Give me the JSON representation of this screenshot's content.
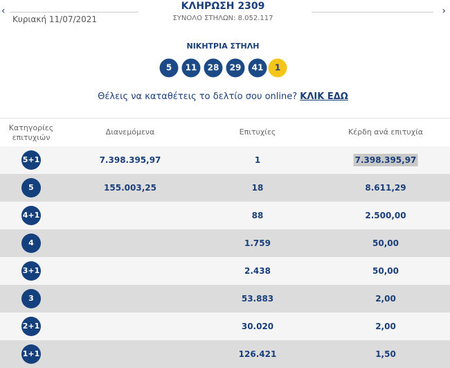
{
  "header": {
    "date": "Κυριακή 11/07/2021",
    "title": "ΚΛΗΡΩΣΗ 2309",
    "subtitle": "ΣΥΝΟΛΟ ΣΤΗΛΩΝ: 8.052.117"
  },
  "winning": {
    "label": "ΝΙΚΗΤΡΙΑ ΣΤΗΛΗ",
    "numbers": [
      "5",
      "11",
      "28",
      "29",
      "41"
    ],
    "joker": "1"
  },
  "promo": {
    "text": "Θέλεις να καταθέτεις το δελτίο σου online?",
    "link": "ΚΛΙΚ ΕΔΩ"
  },
  "table": {
    "headers": [
      "Κατηγορίες επιτυχιών",
      "Διανεμόμενα",
      "Επιτυχίες",
      "Κέρδη ανά επιτυχία"
    ],
    "rows": [
      {
        "category": "5+1",
        "distributed": "7.398.395,97",
        "winners": "1",
        "prize": "7.398.395,97"
      },
      {
        "category": "5",
        "distributed": "155.003,25",
        "winners": "18",
        "prize": "8.611,29"
      },
      {
        "category": "4+1",
        "winners": "88",
        "prize": "2.500,00"
      },
      {
        "category": "4",
        "winners": "1.759",
        "prize": "50,00"
      },
      {
        "category": "3+1",
        "winners": "2.438",
        "prize": "50,00"
      },
      {
        "category": "3",
        "winners": "53.883",
        "prize": "2,00"
      },
      {
        "category": "2+1",
        "winners": "30.020",
        "prize": "2,00"
      },
      {
        "category": "1+1",
        "winners": "126.421",
        "prize": "1,50"
      }
    ]
  }
}
